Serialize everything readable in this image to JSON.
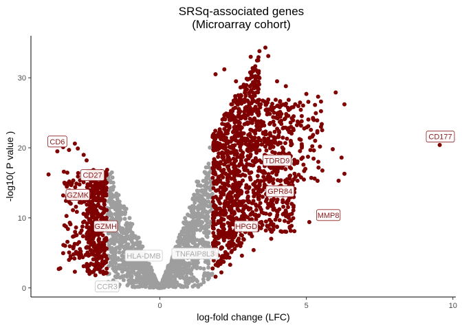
{
  "chart_data": {
    "type": "scatter",
    "title": "SRSq-associated genes",
    "subtitle": "(Microarray cohort)",
    "xlabel": "log-fold change (LFC)",
    "ylabel": "-log10( P value )",
    "xlim": [
      -4.4,
      10.1
    ],
    "ylim": [
      -1.3,
      36
    ],
    "x_ticks": [
      0,
      5,
      10
    ],
    "y_ticks": [
      0,
      10,
      20,
      30
    ],
    "grid": false,
    "colors": {
      "significant": "#7f0000",
      "non_significant": "#9e9e9e",
      "label_sig_text": "#8b1a1a",
      "label_sig_border": "#8b1a1a",
      "label_ns_text": "#a9a9a9",
      "label_ns_border": "#c8c8c8"
    },
    "thresholds": {
      "lfc": 1.8
    },
    "series": [
      {
        "color_key": "significant",
        "points": [
          [
            -3.8,
            16.2
          ],
          [
            -3.5,
            19.5
          ],
          [
            -3.3,
            20.1
          ],
          [
            -3.1,
            19.7
          ],
          [
            -2.9,
            20.6
          ],
          [
            -2.8,
            19.9
          ],
          [
            -2.6,
            19.0
          ],
          [
            -2.5,
            18.2
          ],
          [
            -3.4,
            2.8
          ],
          [
            -3.45,
            2.7
          ],
          [
            -2.9,
            2.3
          ],
          [
            -2.6,
            3.1
          ],
          [
            -2.4,
            2.0
          ],
          [
            -2.2,
            1.8
          ],
          [
            -3.1,
            4.0
          ],
          [
            -2.7,
            5.2
          ],
          [
            1.9,
            30.5
          ],
          [
            2.2,
            31.2
          ],
          [
            2.6,
            29.5
          ],
          [
            3.1,
            33.0
          ],
          [
            3.4,
            33.8
          ],
          [
            3.6,
            34.3
          ],
          [
            3.7,
            33.1
          ],
          [
            4.0,
            29.5
          ],
          [
            4.3,
            28.8
          ],
          [
            5.0,
            27.7
          ],
          [
            5.4,
            27.3
          ],
          [
            6.0,
            27.9
          ],
          [
            6.3,
            26.2
          ],
          [
            5.5,
            23.0
          ],
          [
            5.3,
            21.0
          ],
          [
            5.9,
            19.8
          ],
          [
            6.2,
            18.6
          ],
          [
            6.3,
            16.3
          ],
          [
            6.1,
            15.3
          ],
          [
            4.7,
            15.3
          ],
          [
            4.5,
            12.0
          ],
          [
            4.2,
            10.5
          ],
          [
            5.1,
            9.4
          ],
          [
            4.0,
            8.7
          ],
          [
            3.8,
            7.0
          ],
          [
            3.2,
            5.4
          ],
          [
            2.8,
            4.6
          ],
          [
            2.4,
            3.3
          ],
          [
            2.1,
            2.2
          ],
          [
            1.9,
            1.6
          ],
          [
            4.9,
            17.6
          ],
          [
            9.55,
            20.4
          ]
        ]
      }
    ],
    "labels": [
      {
        "text": "CD6",
        "x": -3.5,
        "y": 20.9,
        "significant": true
      },
      {
        "text": "CD27",
        "x": -2.3,
        "y": 16.1,
        "significant": true
      },
      {
        "text": "GZMK",
        "x": -2.8,
        "y": 13.3,
        "significant": true
      },
      {
        "text": "GZMH",
        "x": -1.85,
        "y": 8.8,
        "significant": true
      },
      {
        "text": "TDRD9",
        "x": 4.0,
        "y": 18.2,
        "significant": true
      },
      {
        "text": "GPR84",
        "x": 4.1,
        "y": 13.8,
        "significant": true
      },
      {
        "text": "HPGD",
        "x": 2.95,
        "y": 8.8,
        "significant": true
      },
      {
        "text": "MMP8",
        "x": 5.75,
        "y": 10.4,
        "significant": true
      },
      {
        "text": "CD177",
        "x": 9.6,
        "y": 21.6,
        "significant": true
      },
      {
        "text": "HLA-DMB",
        "x": -0.55,
        "y": 4.6,
        "significant": false
      },
      {
        "text": "TNFAIP8L3",
        "x": 1.2,
        "y": 4.9,
        "significant": false
      },
      {
        "text": "CCR3",
        "x": -1.8,
        "y": 0.2,
        "significant": false
      }
    ]
  }
}
